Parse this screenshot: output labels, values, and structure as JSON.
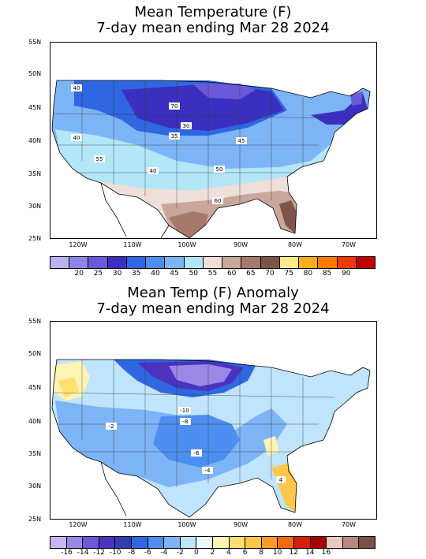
{
  "map1": {
    "title_line1": "Mean Temperature (F)",
    "title_line2": "7-day mean ending Mar 28 2024",
    "lat_labels": [
      "55N",
      "50N",
      "45N",
      "40N",
      "35N",
      "30N",
      "25N"
    ],
    "lon_labels": [
      "120W",
      "110W",
      "100W",
      "90W",
      "80W",
      "70W"
    ],
    "contour_labels": [
      "40",
      "40",
      "30",
      "35",
      "40",
      "45",
      "50",
      "55",
      "60",
      "70"
    ],
    "colorbar_labels": [
      "20",
      "25",
      "30",
      "35",
      "40",
      "45",
      "50",
      "55",
      "60",
      "65",
      "70",
      "75",
      "80",
      "85",
      "90"
    ],
    "colorbar_colors": [
      "#b9b3f3",
      "#8f86ea",
      "#6a5ad9",
      "#3b2fbf",
      "#2f67e0",
      "#4d8ff0",
      "#7db4f6",
      "#b3e6f7",
      "#f0ded9",
      "#caa79b",
      "#a57a6b",
      "#7d5547",
      "#ffe98a",
      "#ffad1f",
      "#ff7a00",
      "#f0390a",
      "#c00000"
    ]
  },
  "map2": {
    "title_line1": "Mean Temp (F) Anomaly",
    "title_line2": "7-day mean ending Mar 28 2024",
    "lat_labels": [
      "55N",
      "50N",
      "45N",
      "40N",
      "35N",
      "30N",
      "25N"
    ],
    "lon_labels": [
      "120W",
      "110W",
      "100W",
      "90W",
      "80W",
      "70W"
    ],
    "contour_labels": [
      "-10",
      "-8",
      "-6",
      "-4",
      "-2",
      "4"
    ],
    "colorbar_labels": [
      "-16",
      "-14",
      "-12",
      "-10",
      "-8",
      "-6",
      "-4",
      "-2",
      "0",
      "2",
      "4",
      "6",
      "8",
      "10",
      "12",
      "14",
      "16"
    ],
    "colorbar_colors": [
      "#c8b5f2",
      "#9a88e6",
      "#6e57d8",
      "#4b33bf",
      "#2f3fae",
      "#2f67e0",
      "#4d8ff0",
      "#7db4f6",
      "#bfe4fb",
      "#eaf7fb",
      "#fff3b5",
      "#ffe06e",
      "#ffc64a",
      "#ff9a28",
      "#f06a10",
      "#d81d0a",
      "#a80000",
      "#e8c9c0",
      "#b98a7c",
      "#7a5245"
    ]
  }
}
